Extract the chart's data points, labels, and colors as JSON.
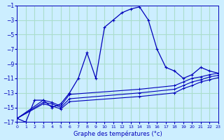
{
  "title": "Graphe des températures (°c)",
  "bg_color": "#cceeff",
  "grid_color": "#aaddcc",
  "line_color": "#0000bb",
  "xlim": [
    0,
    23
  ],
  "ylim": [
    -17,
    -1
  ],
  "xticks": [
    0,
    1,
    2,
    3,
    4,
    5,
    6,
    7,
    8,
    9,
    10,
    11,
    12,
    13,
    14,
    15,
    16,
    17,
    18,
    19,
    20,
    21,
    22,
    23
  ],
  "yticks": [
    -17,
    -15,
    -13,
    -11,
    -9,
    -7,
    -5,
    -3,
    -1
  ],
  "series": [
    {
      "x": [
        0,
        1,
        2,
        3,
        4,
        5,
        6,
        7,
        8,
        9,
        10,
        11,
        12,
        13,
        14,
        15,
        16,
        17,
        18,
        19,
        20,
        21,
        22,
        23
      ],
      "y": [
        -16.5,
        -17,
        -14,
        -14,
        -15,
        -14.5,
        -13,
        -11,
        -7.5,
        -11,
        -4,
        -3,
        -2,
        -1.5,
        -1.2,
        -3,
        -7,
        -9.5,
        -10,
        -11,
        -10.5,
        -9.5,
        -10,
        -10.3
      ]
    },
    {
      "x": [
        0,
        3,
        4,
        5,
        6,
        14,
        18,
        19,
        20,
        21,
        22,
        23
      ],
      "y": [
        -16.5,
        -14,
        -14.3,
        -14.8,
        -13.2,
        -12.5,
        -12,
        -11.5,
        -11,
        -10.8,
        -10.5,
        -10.3
      ]
    },
    {
      "x": [
        0,
        3,
        4,
        5,
        6,
        14,
        18,
        19,
        20,
        21,
        22,
        23
      ],
      "y": [
        -16.5,
        -14.3,
        -14.5,
        -15,
        -13.8,
        -13,
        -12.5,
        -12,
        -11.5,
        -11.2,
        -10.8,
        -10.6
      ]
    },
    {
      "x": [
        0,
        3,
        4,
        5,
        6,
        14,
        18,
        19,
        20,
        21,
        22,
        23
      ],
      "y": [
        -16.5,
        -14.5,
        -14.8,
        -15.2,
        -14.2,
        -13.5,
        -13,
        -12.4,
        -12,
        -11.5,
        -11.2,
        -10.9
      ]
    }
  ]
}
